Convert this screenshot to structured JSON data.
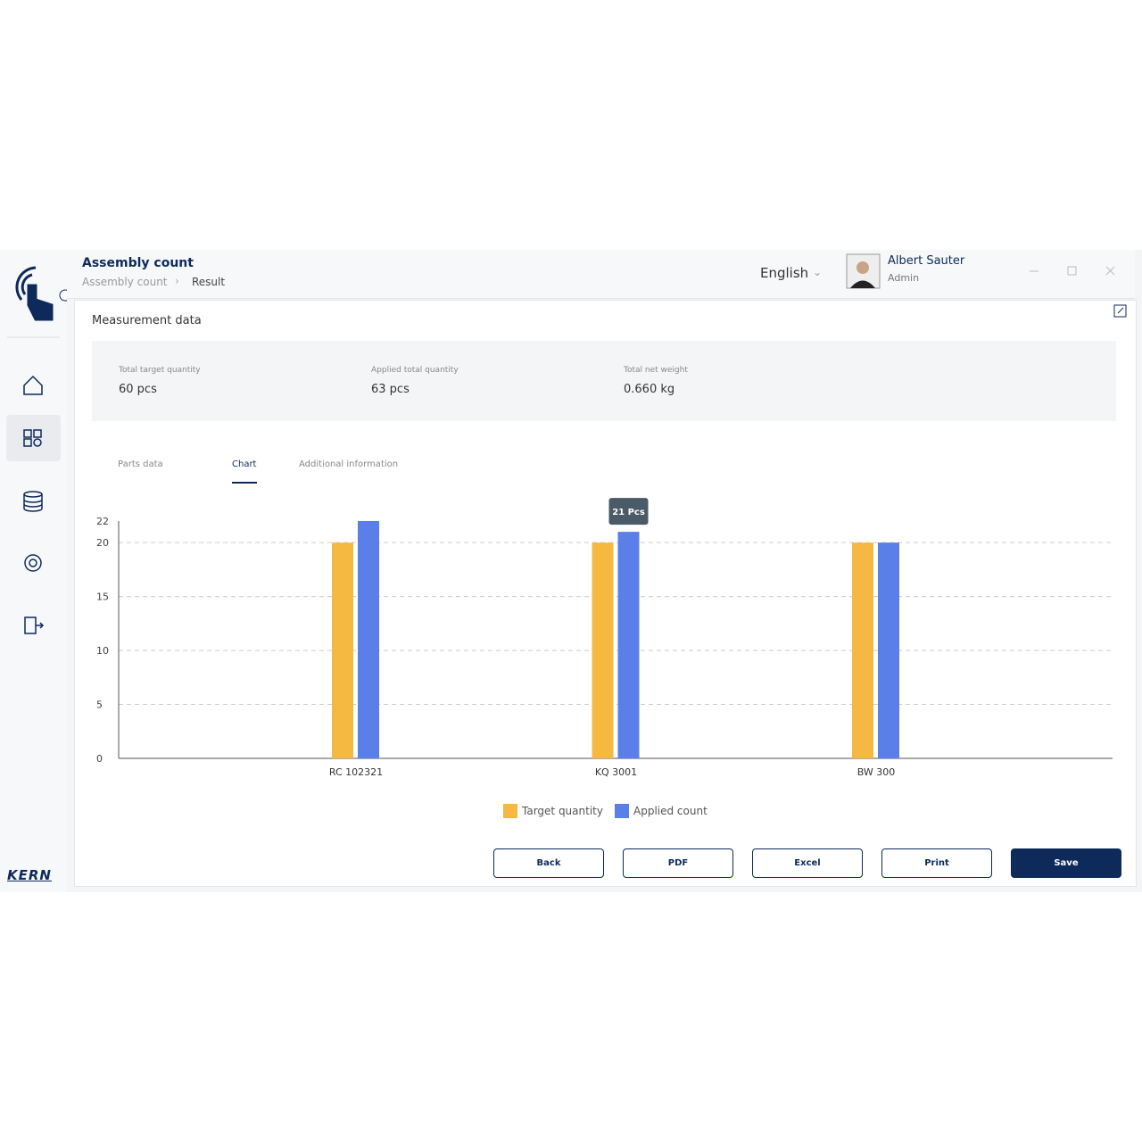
{
  "header": {
    "title": "Assembly count",
    "breadcrumb": [
      "Assembly count",
      "Result"
    ],
    "language": "English",
    "user": {
      "name": "Albert Sauter",
      "role": "Admin"
    }
  },
  "logo": "KERN",
  "section_title": "Measurement data",
  "summary": [
    {
      "label": "Total target quantity",
      "value": "60 pcs"
    },
    {
      "label": "Applied total quantity",
      "value": "63 pcs"
    },
    {
      "label": "Total net weight",
      "value": "0.660 kg"
    }
  ],
  "tabs": [
    "Parts data",
    "Chart",
    "Additional information"
  ],
  "buttons": [
    "Back",
    "PDF",
    "Excel",
    "Print",
    "Save"
  ],
  "chart_data": {
    "type": "bar",
    "categories": [
      "RC 102321",
      "KQ 3001",
      "BW 300"
    ],
    "series": [
      {
        "name": "Target quantity",
        "color": "#f5b942",
        "values": [
          20,
          20,
          20
        ]
      },
      {
        "name": "Applied count",
        "color": "#5b7fe8",
        "values": [
          22,
          21,
          20
        ]
      }
    ],
    "ylim": [
      0,
      22
    ],
    "yticks": [
      0,
      5,
      10,
      15,
      20,
      22
    ],
    "grid": true,
    "annotation": "21 Pcs"
  }
}
